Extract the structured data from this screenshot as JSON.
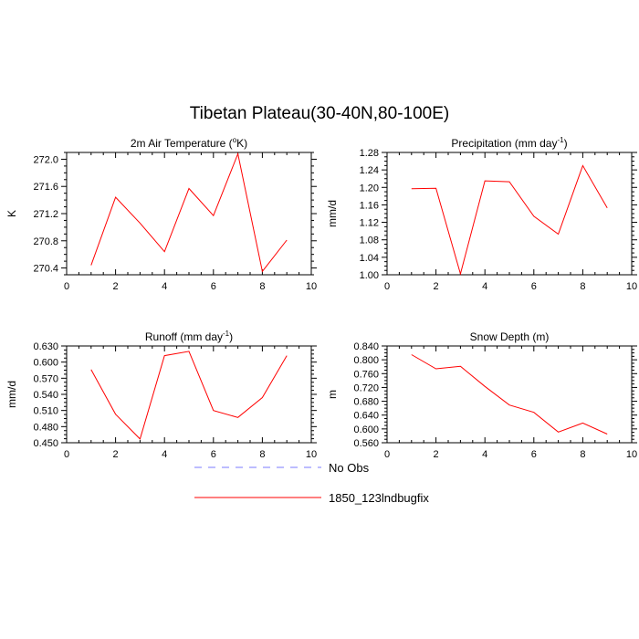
{
  "title": "Tibetan Plateau(30-40N,80-100E)",
  "legend": {
    "placement": "bottom-center",
    "items": [
      {
        "label": "No Obs",
        "color": "#7b7bff",
        "dash": "dashed"
      },
      {
        "label": "1850_123lndbugfix",
        "color": "#ff0000",
        "dash": "solid"
      }
    ]
  },
  "chart_data": [
    {
      "type": "line",
      "title": "2m Air Temperature (",
      "title_sup": "o",
      "title_end": "K)",
      "ylabel": "K",
      "xlim": [
        0,
        10
      ],
      "ylim": [
        270.3,
        272.1
      ],
      "xticks": [
        0,
        2,
        4,
        6,
        8,
        10
      ],
      "yticks": [
        270.4,
        270.8,
        271.2,
        271.6,
        272.0
      ],
      "ytick_labels": [
        "270.4",
        "270.8",
        "271.2",
        "271.6",
        "272.0"
      ],
      "grid": false,
      "series": [
        {
          "name": "1850_123lndbugfix",
          "color": "#ff0000",
          "x": [
            1,
            2,
            3,
            4,
            5,
            6,
            7,
            8,
            9
          ],
          "y": [
            270.44,
            271.44,
            271.06,
            270.64,
            271.57,
            271.17,
            272.08,
            270.35,
            270.81
          ]
        }
      ]
    },
    {
      "type": "line",
      "title": "Precipitation (mm day",
      "title_sup": "-1",
      "title_end": ")",
      "ylabel": "mm/d",
      "xlim": [
        0,
        10
      ],
      "ylim": [
        1.0,
        1.28
      ],
      "xticks": [
        0,
        2,
        4,
        6,
        8,
        10
      ],
      "yticks": [
        1.0,
        1.04,
        1.08,
        1.12,
        1.16,
        1.2,
        1.24,
        1.28
      ],
      "ytick_labels": [
        "1.00",
        "1.04",
        "1.08",
        "1.12",
        "1.16",
        "1.20",
        "1.24",
        "1.28"
      ],
      "grid": false,
      "series": [
        {
          "name": "1850_123lndbugfix",
          "color": "#ff0000",
          "x": [
            1,
            2,
            3,
            4,
            5,
            6,
            7,
            8,
            9
          ],
          "y": [
            1.197,
            1.198,
            1.002,
            1.215,
            1.213,
            1.134,
            1.093,
            1.25,
            1.153
          ]
        }
      ]
    },
    {
      "type": "line",
      "title": "Runoff (mm day",
      "title_sup": "-1",
      "title_end": ")",
      "ylabel": "mm/d",
      "xlim": [
        0,
        10
      ],
      "ylim": [
        0.45,
        0.63
      ],
      "xticks": [
        0,
        2,
        4,
        6,
        8,
        10
      ],
      "yticks": [
        0.45,
        0.48,
        0.51,
        0.54,
        0.57,
        0.6,
        0.63
      ],
      "ytick_labels": [
        "0.450",
        "0.480",
        "0.510",
        "0.540",
        "0.570",
        "0.600",
        "0.630"
      ],
      "grid": false,
      "series": [
        {
          "name": "1850_123lndbugfix",
          "color": "#ff0000",
          "x": [
            1,
            2,
            3,
            4,
            5,
            6,
            7,
            8,
            9
          ],
          "y": [
            0.586,
            0.503,
            0.457,
            0.612,
            0.62,
            0.51,
            0.497,
            0.534,
            0.612
          ]
        }
      ]
    },
    {
      "type": "line",
      "title": "Snow Depth (m)",
      "title_sup": "",
      "title_end": "",
      "ylabel": "m",
      "xlim": [
        0,
        10
      ],
      "ylim": [
        0.56,
        0.84
      ],
      "xticks": [
        0,
        2,
        4,
        6,
        8,
        10
      ],
      "yticks": [
        0.56,
        0.6,
        0.64,
        0.68,
        0.72,
        0.76,
        0.8,
        0.84
      ],
      "ytick_labels": [
        "0.560",
        "0.600",
        "0.640",
        "0.680",
        "0.720",
        "0.760",
        "0.800",
        "0.840"
      ],
      "grid": false,
      "series": [
        {
          "name": "1850_123lndbugfix",
          "color": "#ff0000",
          "x": [
            1,
            2,
            3,
            4,
            5,
            6,
            7,
            8,
            9
          ],
          "y": [
            0.815,
            0.774,
            0.781,
            0.723,
            0.669,
            0.648,
            0.591,
            0.617,
            0.585
          ]
        }
      ]
    }
  ]
}
